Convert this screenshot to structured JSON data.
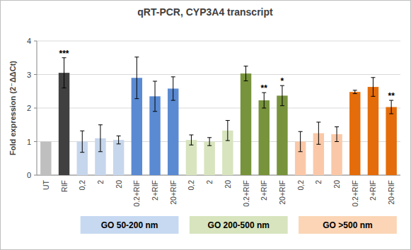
{
  "chart_data": {
    "type": "bar",
    "title": "qRT-PCR, CYP3A4 transcript",
    "y_label": "Fold expression (2⁻ΔΔCt)",
    "categories": [
      "UT",
      "RIF",
      "0,2",
      "2",
      "20",
      "0.2+RIF",
      "2+RIF",
      "20+RIF",
      "0,2",
      "2",
      "20",
      "0.2+RIF",
      "2+RIF",
      "20+RIF",
      "0,2",
      "2",
      "20",
      "0.2+RIF",
      "2+RIF",
      "20+RIF"
    ],
    "values": [
      1,
      3.05,
      1.0,
      1.1,
      1.05,
      2.9,
      2.35,
      2.58,
      1.05,
      1.0,
      1.33,
      3.03,
      2.23,
      2.37,
      1.0,
      1.25,
      1.22,
      2.48,
      2.63,
      2.03
    ],
    "errors": [
      null,
      0.45,
      0.32,
      0.4,
      0.12,
      0.62,
      0.45,
      0.35,
      0.15,
      0.12,
      0.3,
      0.22,
      0.23,
      0.3,
      0.3,
      0.33,
      0.22,
      0.05,
      0.28,
      0.2
    ],
    "significance": [
      null,
      "***",
      null,
      null,
      null,
      null,
      null,
      null,
      null,
      null,
      null,
      null,
      "**",
      "*",
      null,
      null,
      null,
      null,
      null,
      "**"
    ],
    "colors": [
      "#bfbfbf",
      "#404040",
      "#c6d6ec",
      "#c6d6ec",
      "#c6d6ec",
      "#5a8ad2",
      "#5a8ad2",
      "#5a8ad2",
      "#d7e4bd",
      "#d7e4bd",
      "#d7e4bd",
      "#77933c",
      "#77933c",
      "#77933c",
      "#fac8a8",
      "#fac8a8",
      "#fac8a8",
      "#e46c0a",
      "#e46c0a",
      "#e46c0a"
    ],
    "groups": [
      {
        "label": "GO 50-200 nm",
        "color": "#c6d9f1"
      },
      {
        "label": "GO 200-500 nm",
        "color": "#d7e4bd"
      },
      {
        "label": "GO >500 nm",
        "color": "#fbd5b5"
      }
    ],
    "ylim": [
      0,
      4
    ],
    "yticks": [
      0,
      1,
      2,
      3,
      4
    ],
    "grid": true
  }
}
